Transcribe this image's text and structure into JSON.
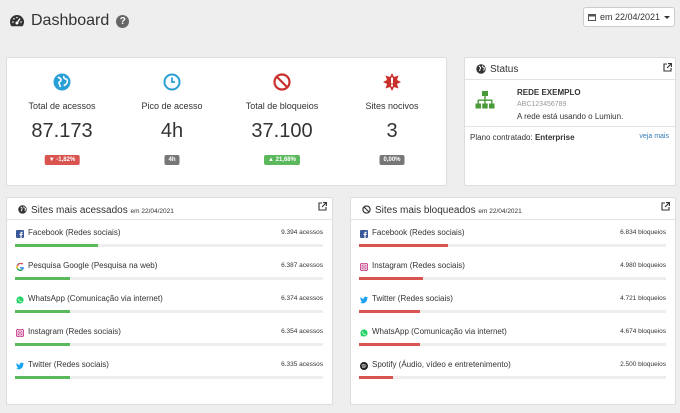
{
  "header": {
    "title": "Dashboard",
    "help": "?"
  },
  "date_picker": {
    "label": "em 22/04/2021"
  },
  "stats": [
    {
      "label": "Total de acessos",
      "value": "87.173",
      "badge": "▼ -1,82%",
      "badge_color": "#d9534f",
      "icon": "globe-icon",
      "icon_color": "#2a9fd6"
    },
    {
      "label": "Pico de acesso",
      "value": "4h",
      "badge": "4h",
      "badge_color": "#777777",
      "icon": "clock-icon",
      "icon_color": "#2a9fd6"
    },
    {
      "label": "Total de bloqueios",
      "value": "37.100",
      "badge": "▲ 21,68%",
      "badge_color": "#5cb85c",
      "icon": "ban-icon",
      "icon_color": "#c9302c"
    },
    {
      "label": "Sites nocivos",
      "value": "3",
      "badge": "0,00%",
      "badge_color": "#777777",
      "icon": "warning-burst-icon",
      "icon_color": "#c9302c"
    }
  ],
  "status": {
    "title": "Status",
    "network_name": "REDE EXEMPLO",
    "network_id": "ABC123456789",
    "description": "A rede está usando o Lumiun.",
    "plan_label": "Plano contratado:",
    "plan_value": "Enterprise",
    "more_link": "veja mais"
  },
  "top_sites": {
    "title": "Sites mais acessados",
    "date": "em 22/04/2021",
    "items": [
      {
        "name": "Facebook (Redes sociais)",
        "count": "9.394 acessos",
        "icon": "facebook-icon",
        "fraction": 0.27
      },
      {
        "name": "Pesquisa Google (Pesquisa na web)",
        "count": "6.387 acessos",
        "icon": "google-icon",
        "fraction": 0.18
      },
      {
        "name": "WhatsApp (Comunicação via internet)",
        "count": "6.374 acessos",
        "icon": "whatsapp-icon",
        "fraction": 0.18
      },
      {
        "name": "Instagram (Redes sociais)",
        "count": "6.354 acessos",
        "icon": "instagram-icon",
        "fraction": 0.18
      },
      {
        "name": "Twitter (Redes sociais)",
        "count": "6.335 acessos",
        "icon": "twitter-icon",
        "fraction": 0.18
      }
    ]
  },
  "blocked_sites": {
    "title": "Sites mais bloqueados",
    "date": "em 22/04/2021",
    "items": [
      {
        "name": "Facebook (Redes sociais)",
        "count": "6.834 bloqueios",
        "icon": "facebook-icon",
        "fraction": 0.29
      },
      {
        "name": "Instagram (Redes sociais)",
        "count": "4.980 bloqueios",
        "icon": "instagram-icon",
        "fraction": 0.21
      },
      {
        "name": "Twitter (Redes sociais)",
        "count": "4.721 bloqueios",
        "icon": "twitter-icon",
        "fraction": 0.2
      },
      {
        "name": "WhatsApp (Comunicação via internet)",
        "count": "4.674 bloqueios",
        "icon": "whatsapp-icon",
        "fraction": 0.2
      },
      {
        "name": "Spotify (Áudio, vídeo e entretenimento)",
        "count": "2.500 bloqueios",
        "icon": "spotify-icon",
        "fraction": 0.11
      }
    ]
  }
}
